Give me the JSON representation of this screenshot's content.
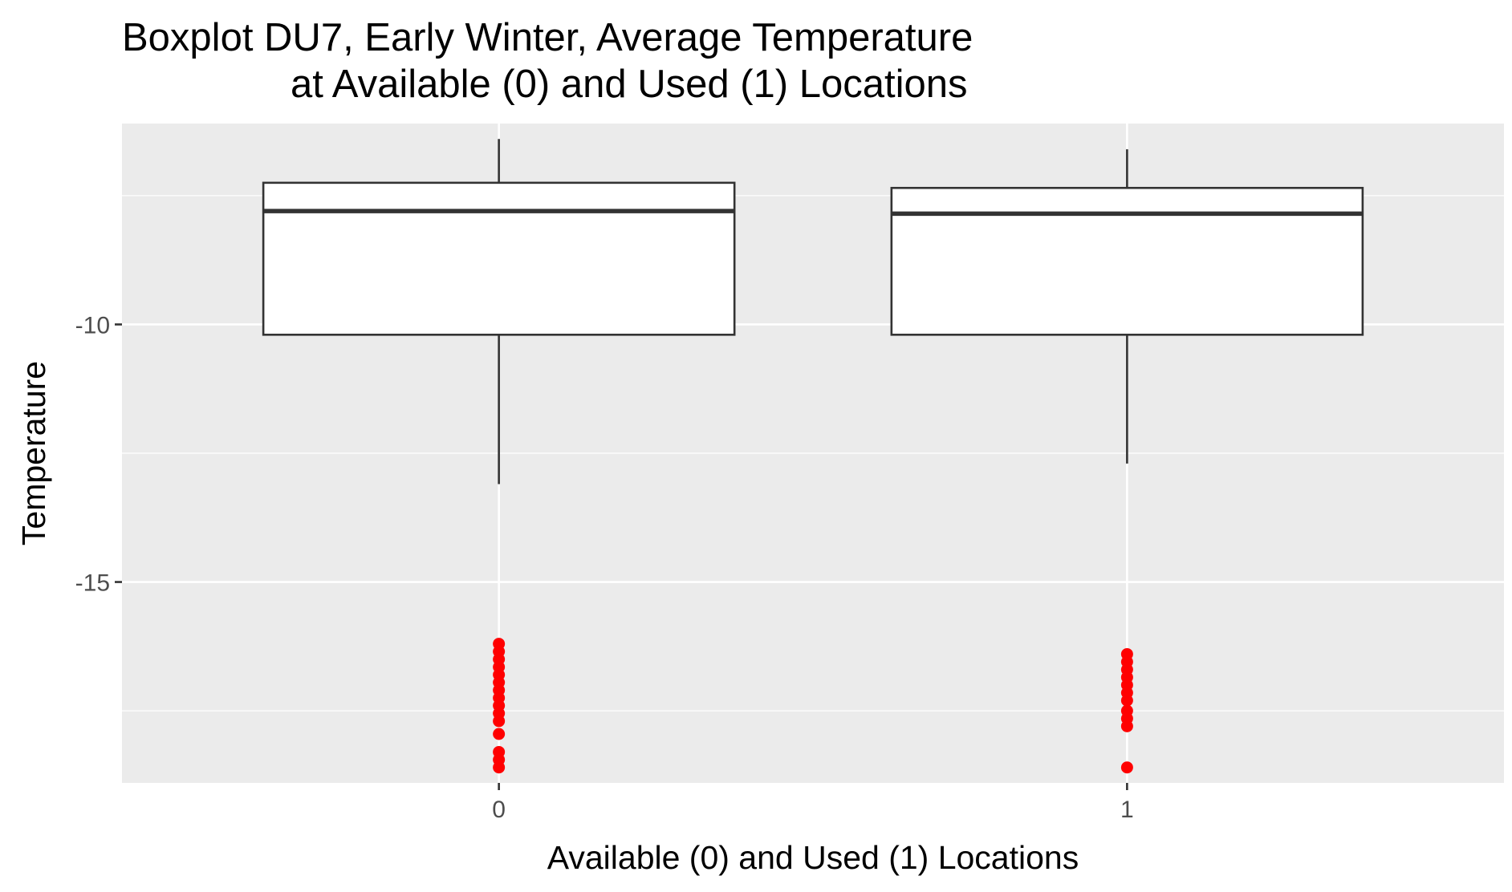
{
  "chart_data": {
    "type": "boxplot",
    "title_lines": [
      "Boxplot DU7, Early Winter, Average Temperature",
      "at Available (0) and Used (1) Locations"
    ],
    "xlabel": "Available (0) and Used (1) Locations",
    "ylabel": "Temperature",
    "categories": [
      "0",
      "1"
    ],
    "yticks": [
      -15,
      -10
    ],
    "ytick_labels": [
      "-15",
      "-10"
    ],
    "ylim": [
      -18.9,
      -6.1
    ],
    "grid": true,
    "panel_background": "#ebebeb",
    "box_color": "#333333",
    "outlier_color": "#ff0000",
    "boxes": [
      {
        "category": "0",
        "whisker_low": -13.1,
        "q1": -10.2,
        "median": -7.8,
        "q3": -7.25,
        "whisker_high": -6.4,
        "outliers": [
          -16.2,
          -16.35,
          -16.5,
          -16.65,
          -16.8,
          -16.95,
          -17.1,
          -17.25,
          -17.4,
          -17.55,
          -17.7,
          -17.95,
          -18.3,
          -18.45,
          -18.6
        ]
      },
      {
        "category": "1",
        "whisker_low": -12.7,
        "q1": -10.2,
        "median": -7.85,
        "q3": -7.35,
        "whisker_high": -6.6,
        "outliers": [
          -16.4,
          -16.55,
          -16.7,
          -16.85,
          -17.0,
          -17.15,
          -17.3,
          -17.5,
          -17.65,
          -17.8,
          -18.6
        ]
      }
    ]
  }
}
